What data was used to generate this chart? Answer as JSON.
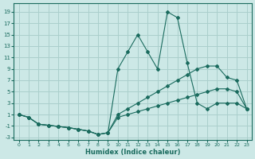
{
  "xlabel": "Humidex (Indice chaleur)",
  "bg_color": "#cce8e6",
  "grid_color": "#aacfcc",
  "line_color": "#1a6b5e",
  "xlim": [
    -0.5,
    23.5
  ],
  "ylim": [
    -3.5,
    20.5
  ],
  "xticks": [
    0,
    1,
    2,
    3,
    4,
    5,
    6,
    7,
    8,
    9,
    10,
    11,
    12,
    13,
    14,
    15,
    16,
    17,
    18,
    19,
    20,
    21,
    22,
    23
  ],
  "yticks": [
    -3,
    -1,
    1,
    3,
    5,
    7,
    9,
    11,
    13,
    15,
    17,
    19
  ],
  "line_spike_x": [
    0,
    1,
    2,
    3,
    4,
    5,
    6,
    7,
    8,
    9,
    10,
    11,
    12,
    13,
    14,
    15,
    16,
    17,
    18,
    19,
    20,
    21,
    22,
    23
  ],
  "line_spike_y": [
    1,
    0.5,
    -0.7,
    -0.9,
    -1.1,
    -1.3,
    -1.6,
    -1.9,
    -2.5,
    -2.2,
    9,
    12,
    15,
    12,
    9,
    19,
    18,
    10,
    3,
    2,
    3,
    3,
    3,
    2
  ],
  "line_upper_x": [
    0,
    1,
    2,
    3,
    4,
    5,
    6,
    7,
    8,
    9,
    10,
    11,
    12,
    13,
    14,
    15,
    16,
    17,
    18,
    19,
    20,
    21,
    22,
    23
  ],
  "line_upper_y": [
    1,
    0.5,
    -0.7,
    -0.9,
    -1.1,
    -1.3,
    -1.6,
    -1.9,
    -2.5,
    -2.2,
    1,
    2,
    3,
    4,
    5,
    6,
    7,
    8,
    9,
    9.5,
    9.5,
    7.5,
    7,
    2
  ],
  "line_flat_x": [
    0,
    1,
    2,
    3,
    4,
    5,
    6,
    7,
    8,
    9,
    10,
    11,
    12,
    13,
    14,
    15,
    16,
    17,
    18,
    19,
    20,
    21,
    22,
    23
  ],
  "line_flat_y": [
    1,
    0.5,
    -0.7,
    -0.9,
    -1.1,
    -1.3,
    -1.6,
    -1.9,
    -2.5,
    -2.2,
    0.5,
    1,
    1.5,
    2,
    2.5,
    3,
    3.5,
    4,
    4.5,
    5,
    5.5,
    5.5,
    5,
    2
  ]
}
